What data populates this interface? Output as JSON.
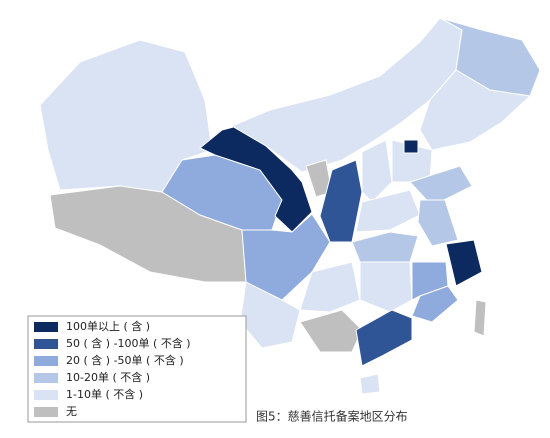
{
  "legend": [
    {
      "label": "100单以上 ( 含 )",
      "color": "#0c2a60"
    },
    {
      "label": "50 ( 含 ) -100单 ( 不含 )",
      "color": "#2f5597"
    },
    {
      "label": "20 ( 含 ) -50单 ( 不含 )",
      "color": "#8faadc"
    },
    {
      "label": "10-20单 ( 不含 )",
      "color": "#b4c7e7"
    },
    {
      "label": "1-10单 ( 不含 )",
      "color": "#dae3f3"
    },
    {
      "label": "无",
      "color": "#bfbfbf"
    }
  ],
  "caption": "图5：慈善信托备案地区分布"
}
